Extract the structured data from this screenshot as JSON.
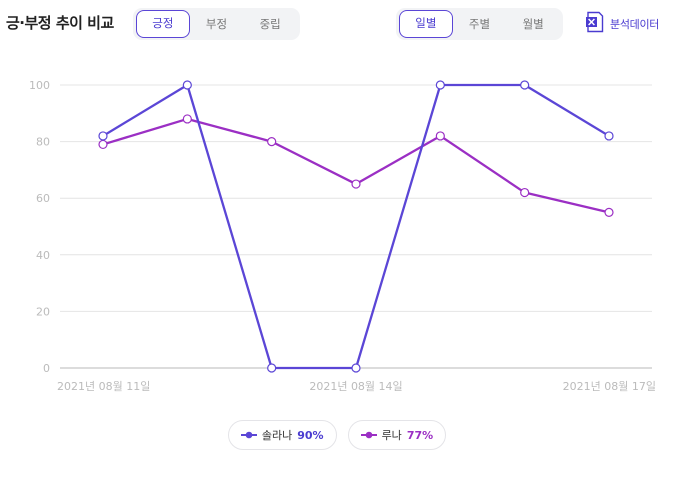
{
  "header": {
    "title": "긍·부정 추이 비교",
    "sentiment_tabs": [
      {
        "label": "긍정",
        "active": true
      },
      {
        "label": "부정",
        "active": false
      },
      {
        "label": "중립",
        "active": false
      }
    ],
    "period_tabs": [
      {
        "label": "일별",
        "active": true
      },
      {
        "label": "주별",
        "active": false
      },
      {
        "label": "월별",
        "active": false
      }
    ],
    "export_label": "분석데이터",
    "export_icon": "excel-icon"
  },
  "colors": {
    "accent": "#4a3bd0",
    "series1": "#5b46d6",
    "series2": "#9b2fc4",
    "grid": "#e4e4e4",
    "axis_text": "#bbbbbb"
  },
  "legend": [
    {
      "name": "솔라나",
      "percent": "90%"
    },
    {
      "name": "루나",
      "percent": "77%"
    }
  ],
  "chart_data": {
    "type": "line",
    "x": [
      "2021-08-11",
      "2021-08-12",
      "2021-08-13",
      "2021-08-14",
      "2021-08-15",
      "2021-08-16",
      "2021-08-17"
    ],
    "x_tick_labels": [
      "2021년 08월 11일",
      "2021년 08월 14일",
      "2021년 08월 17일"
    ],
    "ylim": [
      0,
      100
    ],
    "yticks": [
      0,
      20,
      40,
      60,
      80,
      100
    ],
    "grid": true,
    "legend_position": "bottom",
    "series": [
      {
        "name": "솔라나",
        "values": [
          82,
          100,
          0,
          0,
          100,
          100,
          82
        ]
      },
      {
        "name": "루나",
        "values": [
          79,
          88,
          80,
          65,
          82,
          62,
          55
        ]
      }
    ]
  }
}
